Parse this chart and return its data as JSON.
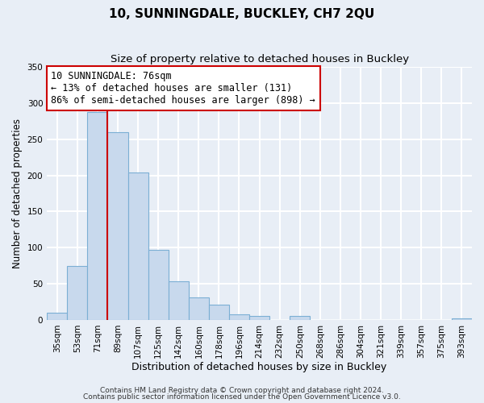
{
  "title": "10, SUNNINGDALE, BUCKLEY, CH7 2QU",
  "subtitle": "Size of property relative to detached houses in Buckley",
  "xlabel": "Distribution of detached houses by size in Buckley",
  "ylabel": "Number of detached properties",
  "bar_labels": [
    "35sqm",
    "53sqm",
    "71sqm",
    "89sqm",
    "107sqm",
    "125sqm",
    "142sqm",
    "160sqm",
    "178sqm",
    "196sqm",
    "214sqm",
    "232sqm",
    "250sqm",
    "268sqm",
    "286sqm",
    "304sqm",
    "321sqm",
    "339sqm",
    "357sqm",
    "375sqm",
    "393sqm"
  ],
  "bar_values": [
    10,
    75,
    288,
    260,
    204,
    97,
    54,
    31,
    21,
    8,
    5,
    0,
    5,
    0,
    0,
    0,
    0,
    0,
    0,
    0,
    2
  ],
  "bar_color": "#c8d9ed",
  "bar_edge_color": "#7bafd4",
  "vline_color": "#cc0000",
  "vline_linewidth": 1.5,
  "vline_bar_index": 2,
  "ylim": [
    0,
    350
  ],
  "yticks": [
    0,
    50,
    100,
    150,
    200,
    250,
    300,
    350
  ],
  "annotation_text": "10 SUNNINGDALE: 76sqm\n← 13% of detached houses are smaller (131)\n86% of semi-detached houses are larger (898) →",
  "annotation_fontsize": 8.5,
  "footer_line1": "Contains HM Land Registry data © Crown copyright and database right 2024.",
  "footer_line2": "Contains public sector information licensed under the Open Government Licence v3.0.",
  "title_fontsize": 11,
  "subtitle_fontsize": 9.5,
  "xlabel_fontsize": 9,
  "ylabel_fontsize": 8.5,
  "tick_fontsize": 7.5,
  "footer_fontsize": 6.5,
  "background_color": "#e8eef6",
  "plot_background_color": "#e8eef6",
  "grid_color": "white",
  "grid_linewidth": 1.5
}
